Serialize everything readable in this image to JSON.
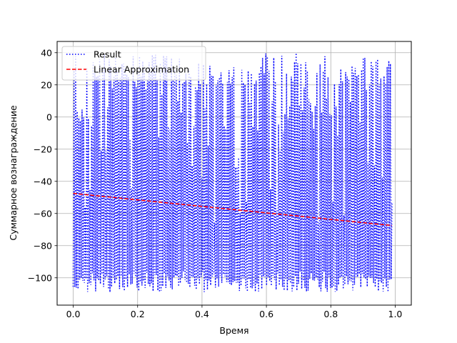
{
  "chart_data": {
    "type": "line",
    "title": "",
    "xlabel": "Время",
    "ylabel": "Суммарное вознаграждение",
    "xlim": [
      -0.05,
      1.05
    ],
    "ylim": [
      -117,
      47
    ],
    "xticks": [
      0.0,
      0.2,
      0.4,
      0.6,
      0.8,
      1.0
    ],
    "xtick_labels": [
      "0.0",
      "0.2",
      "0.4",
      "0.6",
      "0.8",
      "1.0"
    ],
    "yticks": [
      -100,
      -80,
      -60,
      -40,
      -20,
      0,
      20,
      40
    ],
    "ytick_labels": [
      "−100",
      "−80",
      "−60",
      "−40",
      "−20",
      "0",
      "20",
      "40"
    ],
    "grid": true,
    "legend_position": "top-left",
    "series": [
      {
        "name": "Result",
        "style": "dotted",
        "color": "#0000ff",
        "x_range": [
          0.0,
          0.99
        ],
        "n_points": 400,
        "min_value": -110,
        "max_value": 40,
        "pattern": "rapid oscillation between about −100 and +40"
      },
      {
        "name": "Linear Approximation",
        "style": "dashed",
        "color": "#ff0000",
        "x": [
          0.0,
          0.99
        ],
        "y": [
          -47.5,
          -67.5
        ]
      }
    ]
  }
}
